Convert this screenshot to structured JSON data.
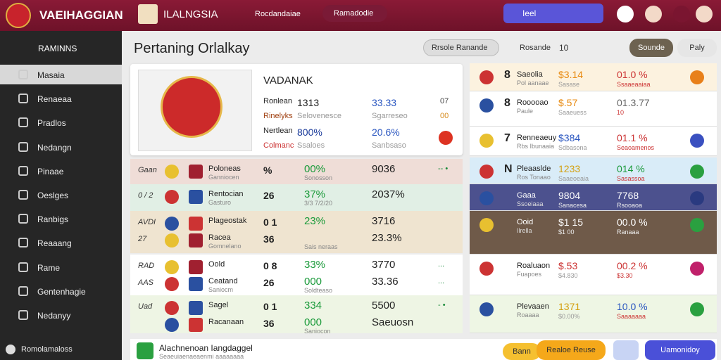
{
  "topbar": {
    "brand": "VAEIHAGGIAN",
    "tab": "ILALNGSIA",
    "nav": [
      "Rocdandaiae",
      "Ramadodie"
    ],
    "search": "Ieel"
  },
  "sidebar": {
    "header": "RAMINNS",
    "items": [
      "Masaia",
      "Renaeaa",
      "Pradlos",
      "Nedangn",
      "Pinaae",
      "Oeslges",
      "Ranbigs",
      "Reaaang",
      "Rame",
      "Gentenhagie",
      "Nedanyy"
    ],
    "footer": "Romolamaloss"
  },
  "page": {
    "title": "Pertaning Orlalkay",
    "filter": "Rrsole Ranande",
    "sort": "Rosande",
    "count": "10",
    "primary": "Sounde",
    "secondary": "Paly"
  },
  "featured": {
    "title": "VADANAK",
    "rows": [
      [
        "Ronlean",
        "1313",
        "33.33",
        "07"
      ],
      [
        "Rinelyks",
        "Selovenesce",
        "Sgarreseo",
        "00"
      ],
      [
        "Nertlean",
        "800%",
        "20.6%",
        ""
      ],
      [
        "Colmanc",
        "Ssaloes",
        "Sanbsaso",
        ""
      ]
    ]
  },
  "matches": [
    [
      {
        "code": "Gaan",
        "team": "Poloneas",
        "sub": "Ganniocen",
        "score": "%",
        "pct": "00%",
        "pct_sub": "Sonosson",
        "value": "9036",
        "trend": "-- •"
      }
    ],
    [
      {
        "code": "0 / 2",
        "team": "Rentocian",
        "sub": "Gasturo",
        "score": "26",
        "pct": "37%",
        "pct_sub": "3/3 7/2/20",
        "value": "2037%",
        "trend": ""
      }
    ],
    [
      {
        "code": "AVDI",
        "team": "Plageostak",
        "sub": "",
        "score": "0 1",
        "pct": "23%",
        "pct_sub": "",
        "value": "3716",
        "trend": ""
      },
      {
        "code": "27",
        "team": "Racea",
        "sub": "Gomnelano",
        "score": "36",
        "pct": "",
        "pct_sub": "Sais neraas",
        "value": "23.3%",
        "trend": ""
      }
    ],
    [
      {
        "code": "RAD",
        "team": "Oold",
        "sub": "",
        "score": "0 8",
        "pct": "33%",
        "pct_sub": "",
        "value": "3770",
        "trend": "..."
      },
      {
        "code": "AAS",
        "team": "Ceatand",
        "sub": "Saniocm",
        "score": "26",
        "pct": "000",
        "pct_sub": "Soldteaso",
        "value": "33.36",
        "trend": "..."
      }
    ],
    [
      {
        "code": "Uad",
        "team": "Sagel",
        "sub": "",
        "score": "0 1",
        "pct": "334",
        "pct_sub": "",
        "value": "5500",
        "trend": "- •"
      },
      {
        "code": "",
        "team": "Racanaan",
        "sub": "",
        "score": "36",
        "pct": "000",
        "pct_sub": "Saniocon",
        "value": "Saeuosn",
        "trend": ""
      }
    ]
  ],
  "ranking": [
    {
      "num": "8",
      "name": "Saeolia",
      "sub": "Pol aanaae",
      "value": "$3.14",
      "value_sub": "Sasase",
      "pct": "01.0 %",
      "pct_sub": "Ssaaeaaiaa"
    },
    {
      "num": "8",
      "name": "Rooooao",
      "sub": "Paule",
      "value": "$.57",
      "value_sub": "Saaeuess",
      "pct": "01.3.77",
      "pct_sub": "10"
    },
    {
      "num": "7",
      "name": "Renneaeuy",
      "sub": "Rbs Ibunaaia",
      "value": "$384",
      "value_sub": "Sdbasona",
      "pct": "01.1 %",
      "pct_sub": "Seaoamenos"
    },
    {
      "num": "N",
      "name": "Pleaaslde",
      "sub": "Ros Tonaao",
      "value": "1233",
      "value_sub": "Saaeoeaia",
      "pct": "014 %",
      "pct_sub": "Sasassoa"
    },
    {
      "num": "",
      "name": "Gaaa",
      "sub": "Ssoeiaaa",
      "value": "9804",
      "value_sub": "Sanacesa",
      "pct": "7768",
      "pct_sub": "Rsooaoa"
    },
    {
      "num": "",
      "name": "Ooid",
      "sub": "Ilrella",
      "value": "$1 15",
      "value_sub": "$1 00",
      "pct": "00.0 %",
      "pct_sub": "Ranaaa"
    },
    {
      "num": "",
      "name": "Roaluaon",
      "sub": "Fuapoes",
      "value": "$.53",
      "value_sub": "$4.830",
      "pct": "00.2 %",
      "pct_sub": "$3.30"
    },
    {
      "num": "",
      "name": "Plevaaen",
      "sub": "Roaaaa",
      "value": "1371",
      "value_sub": "$0.00%",
      "pct": "10.0 %",
      "pct_sub": "Saaaaaaa"
    }
  ],
  "footer": {
    "title": "Alachnenoan Iangdaggel",
    "subtitle": "Seaeuiaenaeaenmi aaaaaaaa",
    "badge": "Bann",
    "action": "Realoe Reuse",
    "primary": "Uamonidoy"
  }
}
